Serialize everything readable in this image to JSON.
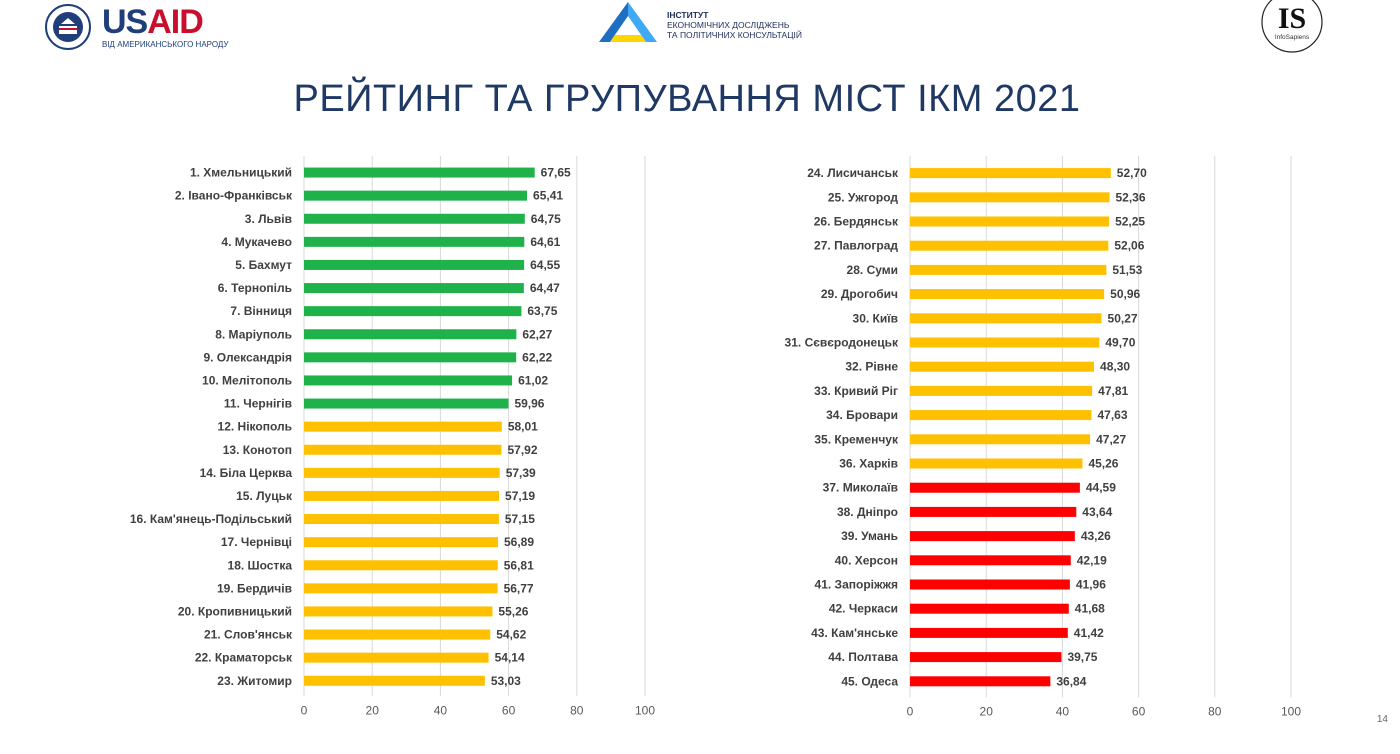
{
  "header": {
    "usaid_word_1": "US",
    "usaid_word_2": "AID",
    "usaid_sub": "ВІД АМЕРИКАНСЬКОГО НАРОДУ",
    "ier_line1": "ІНСТИТУТ",
    "ier_line2": "ЕКОНОМІЧНИХ ДОСЛІДЖЕНЬ",
    "ier_line3": "ТА ПОЛІТИЧНИХ КОНСУЛЬТАЦІЙ",
    "is_mark": "IS",
    "is_name": "InfoSapiens"
  },
  "title": "РЕЙТИНГ ТА ГРУПУВАННЯ МІСТ ІКМ 2021",
  "page_number": "14",
  "colors": {
    "green": "#1fb24a",
    "yellow": "#ffc000",
    "red": "#ff0000",
    "title": "#1f3864"
  },
  "chart_data": [
    {
      "type": "bar",
      "orientation": "horizontal",
      "categories": [
        "1. Хмельницький",
        "2. Івано-Франківськ",
        "3. Львів",
        "4. Мукачево",
        "5. Бахмут",
        "6. Тернопіль",
        "7. Вінниця",
        "8. Маріуполь",
        "9. Олександрія",
        "10. Мелітополь",
        "11. Чернігів",
        "12. Нікополь",
        "13. Конотоп",
        "14. Біла Церква",
        "15. Луцьк",
        "16. Кам'янець-Подільський",
        "17. Чернівці",
        "18. Шостка",
        "19. Бердичів",
        "20. Кропивницький",
        "21. Слов'янськ",
        "22. Краматорськ",
        "23. Житомир"
      ],
      "values": [
        67.65,
        65.41,
        64.75,
        64.61,
        64.55,
        64.47,
        63.75,
        62.27,
        62.22,
        61.02,
        59.96,
        58.01,
        57.92,
        57.39,
        57.19,
        57.15,
        56.89,
        56.81,
        56.77,
        55.26,
        54.62,
        54.14,
        53.03
      ],
      "labels": [
        "67,65",
        "65,41",
        "64,75",
        "64,61",
        "64,55",
        "64,47",
        "63,75",
        "62,27",
        "62,22",
        "61,02",
        "59,96",
        "58,01",
        "57,92",
        "57,39",
        "57,19",
        "57,15",
        "56,89",
        "56,81",
        "56,77",
        "55,26",
        "54,62",
        "54,14",
        "53,03"
      ],
      "groups": [
        "green",
        "green",
        "green",
        "green",
        "green",
        "green",
        "green",
        "green",
        "green",
        "green",
        "green",
        "yellow",
        "yellow",
        "yellow",
        "yellow",
        "yellow",
        "yellow",
        "yellow",
        "yellow",
        "yellow",
        "yellow",
        "yellow",
        "yellow"
      ],
      "xlim": [
        0,
        100
      ],
      "xticks": [
        "0",
        "20",
        "40",
        "60",
        "80",
        "100"
      ],
      "grid": true
    },
    {
      "type": "bar",
      "orientation": "horizontal",
      "categories": [
        "24. Лисичанськ",
        "25. Ужгород",
        "26. Бердянськ",
        "27. Павлоград",
        "28. Суми",
        "29. Дрогобич",
        "30. Київ",
        "31. Сєвєродонецьк",
        "32. Рівне",
        "33. Кривий Ріг",
        "34. Бровари",
        "35. Кременчук",
        "36. Харків",
        "37. Миколаїв",
        "38. Дніпро",
        "39. Умань",
        "40. Херсон",
        "41. Запоріжжя",
        "42. Черкаси",
        "43. Кам'янське",
        "44. Полтава",
        "45. Одеса"
      ],
      "values": [
        52.7,
        52.36,
        52.25,
        52.06,
        51.53,
        50.96,
        50.27,
        49.7,
        48.3,
        47.81,
        47.63,
        47.27,
        45.26,
        44.59,
        43.64,
        43.26,
        42.19,
        41.96,
        41.68,
        41.42,
        39.75,
        36.84
      ],
      "labels": [
        "52,70",
        "52,36",
        "52,25",
        "52,06",
        "51,53",
        "50,96",
        "50,27",
        "49,70",
        "48,30",
        "47,81",
        "47,63",
        "47,27",
        "45,26",
        "44,59",
        "43,64",
        "43,26",
        "42,19",
        "41,96",
        "41,68",
        "41,42",
        "39,75",
        "36,84"
      ],
      "groups": [
        "yellow",
        "yellow",
        "yellow",
        "yellow",
        "yellow",
        "yellow",
        "yellow",
        "yellow",
        "yellow",
        "yellow",
        "yellow",
        "yellow",
        "yellow",
        "red",
        "red",
        "red",
        "red",
        "red",
        "red",
        "red",
        "red",
        "red"
      ],
      "xlim": [
        0,
        100
      ],
      "xticks": [
        "0",
        "20",
        "40",
        "60",
        "80",
        "100"
      ],
      "grid": true
    }
  ]
}
